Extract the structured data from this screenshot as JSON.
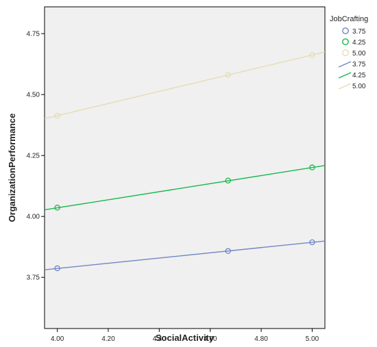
{
  "chart_data": {
    "type": "line",
    "xlabel": "SocialActivity",
    "ylabel": "OrganizationPerformance",
    "xlim": [
      3.95,
      5.05
    ],
    "ylim": [
      3.54,
      4.86
    ],
    "xticks": [
      "4.00",
      "4.20",
      "4.40",
      "4.60",
      "4.80",
      "5.00"
    ],
    "yticks": [
      "3.75",
      "4.00",
      "4.25",
      "4.50",
      "4.75"
    ],
    "grid": false,
    "plot_background": "#f0f0f0",
    "legend": {
      "title": "JobCrafting",
      "placement": "right-top",
      "marker_entries": [
        "3.75",
        "4.25",
        "5.00"
      ],
      "line_entries": [
        "3.75",
        "4.25",
        "5.00"
      ]
    },
    "series": [
      {
        "name": "3.75",
        "color": "#6f86c5",
        "points": {
          "x": [
            4.0,
            4.67,
            5.0
          ],
          "y": [
            3.787,
            3.858,
            3.894
          ]
        },
        "fit_line": {
          "x": [
            3.95,
            5.05
          ],
          "y": [
            3.781,
            3.899
          ]
        }
      },
      {
        "name": "4.25",
        "color": "#16b84e",
        "points": {
          "x": [
            4.0,
            4.67,
            5.0
          ],
          "y": [
            4.036,
            4.147,
            4.201
          ]
        },
        "fit_line": {
          "x": [
            3.95,
            5.05
          ],
          "y": [
            4.027,
            4.209
          ]
        }
      },
      {
        "name": "5.00",
        "color": "#e6dcb3",
        "points": {
          "x": [
            4.0,
            4.67,
            5.0
          ],
          "y": [
            4.413,
            4.581,
            4.662
          ]
        },
        "fit_line": {
          "x": [
            3.95,
            5.05
          ],
          "y": [
            4.401,
            4.675
          ]
        }
      }
    ]
  }
}
